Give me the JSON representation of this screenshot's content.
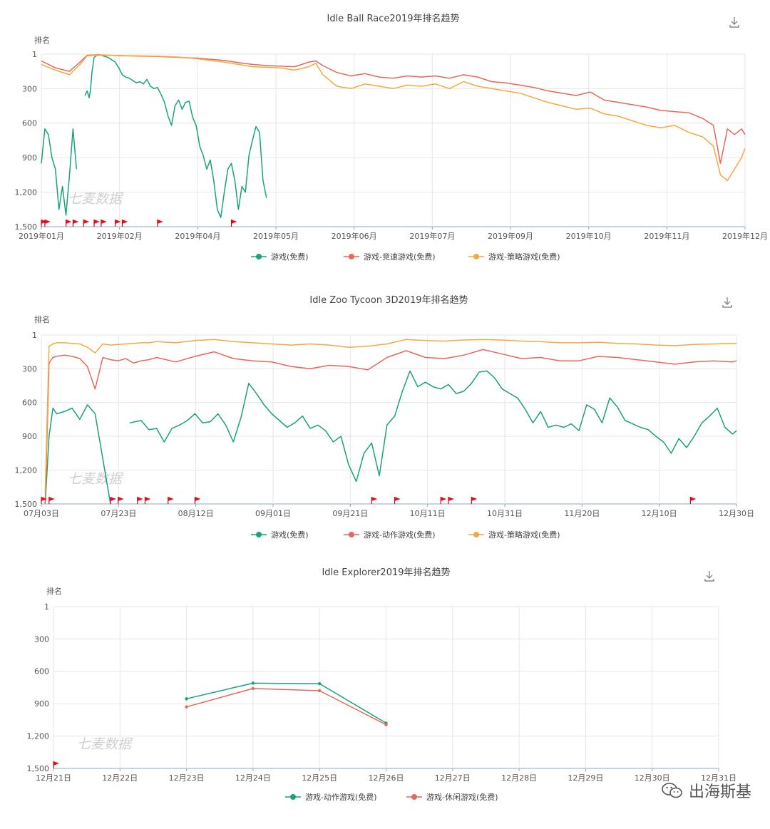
{
  "chart_data": [
    {
      "type": "line",
      "title": "Idle Ball Race2019年排名趋势",
      "ylabel": "排名",
      "y_ticks": [
        "1",
        "300",
        "600",
        "900",
        "1,200",
        "1,500"
      ],
      "ylim": [
        1,
        1500
      ],
      "y_inverted": true,
      "x_ticks": [
        "2019年01月",
        "2019年02月",
        "2019年04月",
        "2019年05月",
        "2019年06月",
        "2019年07月",
        "2019年09月",
        "2019年10月",
        "2019年11月",
        "2019年12月"
      ],
      "xlim": [
        0,
        1000
      ],
      "watermark": "七麦数据",
      "download_icon": "download-icon",
      "series": [
        {
          "name": "游戏(免费)",
          "color": "#1aa17d",
          "x": [
            0,
            5,
            10,
            15,
            20,
            25,
            30,
            35,
            40,
            45,
            50,
            55,
            60,
            62,
            65,
            68,
            70,
            72,
            75,
            80,
            85,
            90,
            95,
            100,
            105,
            110,
            115,
            120,
            125,
            130,
            135,
            140,
            145,
            150,
            155,
            160,
            165,
            170,
            175,
            180,
            185,
            190,
            195,
            200,
            205,
            210,
            215,
            220,
            225,
            230,
            235,
            240,
            245,
            250,
            255,
            260,
            265,
            270,
            275,
            280,
            285,
            290,
            295,
            300,
            305,
            310,
            315,
            320,
            325,
            330,
            335,
            340,
            345,
            350,
            355,
            360,
            365,
            370,
            375,
            380,
            385,
            390,
            395,
            400,
            405,
            410
          ],
          "values": [
            950,
            650,
            700,
            900,
            1000,
            1350,
            1150,
            1400,
            1050,
            650,
            1000,
            null,
            null,
            360,
            320,
            380,
            300,
            150,
            30,
            5,
            10,
            20,
            30,
            50,
            70,
            120,
            180,
            200,
            210,
            230,
            250,
            240,
            260,
            220,
            280,
            300,
            290,
            350,
            420,
            540,
            620,
            450,
            400,
            480,
            420,
            410,
            550,
            620,
            800,
            880,
            1000,
            920,
            1100,
            1350,
            1420,
            1200,
            1000,
            950,
            1100,
            1350,
            1150,
            1200,
            880,
            750,
            630,
            680,
            1100,
            1250,
            null,
            null,
            null,
            null,
            null,
            null,
            null,
            null,
            null,
            null,
            null,
            null,
            null,
            null,
            null,
            null,
            null,
            null
          ]
        },
        {
          "name": "游戏-竞速游戏(免费)",
          "color": "#e8675c",
          "x": [
            0,
            20,
            40,
            55,
            65,
            80,
            100,
            120,
            140,
            160,
            180,
            200,
            220,
            240,
            260,
            280,
            300,
            320,
            340,
            360,
            380,
            390,
            400,
            420,
            440,
            460,
            480,
            500,
            520,
            540,
            560,
            580,
            600,
            620,
            640,
            660,
            680,
            700,
            720,
            740,
            760,
            780,
            800,
            820,
            840,
            860,
            880,
            900,
            920,
            940,
            955,
            965,
            975,
            985,
            995,
            1000
          ],
          "values": [
            60,
            120,
            150,
            70,
            10,
            8,
            12,
            15,
            18,
            20,
            25,
            30,
            35,
            45,
            55,
            75,
            90,
            100,
            105,
            110,
            70,
            60,
            100,
            160,
            190,
            170,
            200,
            210,
            190,
            200,
            190,
            210,
            180,
            200,
            240,
            250,
            270,
            290,
            320,
            340,
            360,
            330,
            400,
            420,
            440,
            460,
            490,
            500,
            510,
            560,
            620,
            950,
            650,
            700,
            650,
            700
          ]
        },
        {
          "name": "游戏-策略游戏(免费)",
          "color": "#f4a940",
          "x": [
            0,
            20,
            40,
            55,
            65,
            80,
            100,
            120,
            140,
            160,
            180,
            200,
            220,
            240,
            260,
            280,
            300,
            320,
            340,
            360,
            380,
            390,
            400,
            420,
            440,
            460,
            480,
            500,
            520,
            540,
            560,
            580,
            600,
            620,
            640,
            660,
            680,
            700,
            720,
            740,
            760,
            780,
            800,
            820,
            840,
            860,
            880,
            900,
            920,
            940,
            955,
            965,
            975,
            985,
            995,
            1000
          ],
          "values": [
            90,
            140,
            180,
            90,
            15,
            10,
            12,
            14,
            16,
            18,
            22,
            28,
            40,
            55,
            70,
            90,
            110,
            115,
            120,
            140,
            110,
            80,
            180,
            280,
            300,
            260,
            280,
            300,
            270,
            280,
            260,
            300,
            240,
            280,
            300,
            320,
            340,
            380,
            420,
            450,
            480,
            470,
            520,
            540,
            580,
            620,
            640,
            620,
            680,
            720,
            800,
            1050,
            1100,
            1000,
            900,
            820
          ]
        }
      ],
      "event_markers": [
        0,
        5,
        35,
        45,
        60,
        75,
        85,
        105,
        115,
        165,
        270
      ]
    },
    {
      "type": "line",
      "title": "Idle Zoo Tycoon 3D2019年排名趋势",
      "ylabel": "排名",
      "y_ticks": [
        "1",
        "300",
        "600",
        "900",
        "1,200",
        "1,500"
      ],
      "ylim": [
        1,
        1500
      ],
      "y_inverted": true,
      "x_ticks": [
        "07月03日",
        "07月23日",
        "08月12日",
        "09月01日",
        "09月21日",
        "10月11日",
        "10月31日",
        "11月20日",
        "12月10日",
        "12月30日"
      ],
      "xlim": [
        0,
        181
      ],
      "watermark": "七麦数据",
      "download_icon": "download-icon",
      "series": [
        {
          "name": "游戏(免费)",
          "color": "#1aa17d",
          "x": [
            1,
            2,
            3,
            4,
            6,
            8,
            10,
            12,
            14,
            16,
            18,
            20,
            21,
            22,
            23,
            26,
            28,
            30,
            32,
            34,
            36,
            38,
            40,
            42,
            44,
            46,
            48,
            50,
            52,
            54,
            56,
            58,
            60,
            62,
            64,
            66,
            68,
            70,
            72,
            74,
            76,
            78,
            80,
            82,
            84,
            86,
            88,
            90,
            92,
            94,
            96,
            98,
            100,
            102,
            104,
            106,
            108,
            110,
            112,
            114,
            116,
            118,
            120,
            122,
            124,
            126,
            128,
            130,
            132,
            134,
            136,
            138,
            140,
            142,
            144,
            146,
            148,
            150,
            152,
            154,
            156,
            158,
            160,
            162,
            164,
            166,
            168,
            170,
            172,
            174,
            176,
            178,
            180,
            181
          ],
          "values": [
            1500,
            900,
            650,
            700,
            680,
            650,
            750,
            620,
            700,
            1100,
            1500,
            null,
            null,
            null,
            780,
            760,
            840,
            830,
            950,
            830,
            800,
            760,
            700,
            780,
            770,
            700,
            800,
            950,
            730,
            430,
            520,
            620,
            700,
            760,
            820,
            780,
            720,
            830,
            800,
            850,
            950,
            900,
            1150,
            1300,
            1050,
            960,
            1250,
            800,
            720,
            500,
            320,
            460,
            420,
            460,
            480,
            440,
            520,
            500,
            430,
            330,
            320,
            380,
            480,
            520,
            560,
            660,
            780,
            680,
            820,
            800,
            820,
            790,
            850,
            620,
            660,
            780,
            560,
            640,
            760,
            790,
            820,
            840,
            900,
            950,
            1050,
            920,
            1000,
            900,
            780,
            720,
            650,
            820,
            880,
            850
          ]
        },
        {
          "name": "游戏-动作游戏(免费)",
          "color": "#e8675c",
          "x": [
            1,
            2,
            3,
            4,
            6,
            8,
            10,
            12,
            14,
            16,
            18,
            20,
            22,
            24,
            26,
            28,
            30,
            35,
            40,
            45,
            50,
            55,
            60,
            65,
            70,
            75,
            80,
            85,
            90,
            95,
            100,
            105,
            110,
            115,
            120,
            125,
            130,
            135,
            140,
            145,
            150,
            155,
            160,
            165,
            170,
            175,
            180,
            181
          ],
          "values": [
            1500,
            250,
            200,
            190,
            180,
            190,
            210,
            280,
            480,
            200,
            220,
            230,
            210,
            250,
            230,
            220,
            200,
            240,
            190,
            150,
            210,
            230,
            240,
            280,
            300,
            270,
            280,
            310,
            200,
            140,
            200,
            210,
            180,
            130,
            170,
            210,
            200,
            230,
            230,
            190,
            200,
            220,
            240,
            260,
            240,
            230,
            240,
            230
          ]
        },
        {
          "name": "游戏-策略游戏(免费)",
          "color": "#f4a940",
          "x": [
            1,
            2,
            3,
            4,
            6,
            8,
            10,
            12,
            14,
            16,
            18,
            20,
            22,
            24,
            26,
            28,
            30,
            35,
            40,
            45,
            50,
            55,
            60,
            65,
            70,
            75,
            80,
            85,
            90,
            95,
            100,
            105,
            110,
            115,
            120,
            125,
            130,
            135,
            140,
            145,
            150,
            155,
            160,
            165,
            170,
            175,
            180,
            181
          ],
          "values": [
            1400,
            100,
            80,
            70,
            70,
            75,
            80,
            110,
            160,
            80,
            90,
            85,
            80,
            75,
            70,
            70,
            60,
            70,
            50,
            40,
            60,
            70,
            80,
            90,
            80,
            90,
            110,
            100,
            80,
            40,
            50,
            55,
            45,
            40,
            45,
            55,
            60,
            70,
            70,
            65,
            75,
            80,
            90,
            95,
            85,
            80,
            75,
            75
          ]
        }
      ],
      "event_markers": [
        0,
        2,
        18,
        20,
        25,
        27,
        33,
        40,
        86,
        92,
        104,
        106,
        112,
        169
      ]
    },
    {
      "type": "line",
      "title": "Idle Explorer2019年排名趋势",
      "ylabel": "排名",
      "y_ticks": [
        "1",
        "300",
        "600",
        "900",
        "1,200",
        "1,500"
      ],
      "ylim": [
        1,
        1500
      ],
      "y_inverted": true,
      "x_ticks": [
        "12月21日",
        "12月22日",
        "12月23日",
        "12月24日",
        "12月25日",
        "12月26日",
        "12月27日",
        "12月28日",
        "12月29日",
        "12月30日",
        "12月31日"
      ],
      "xlim": [
        0,
        10
      ],
      "watermark": "七麦数据",
      "download_icon": "download-icon",
      "series": [
        {
          "name": "游戏-动作游戏(免费)",
          "color": "#1aa17d",
          "x": [
            2,
            3,
            4,
            5
          ],
          "values": [
            855,
            710,
            715,
            1080
          ]
        },
        {
          "name": "游戏-休闲游戏(免费)",
          "color": "#e8675c",
          "x": [
            2,
            3,
            4,
            5
          ],
          "values": [
            930,
            760,
            780,
            1095
          ]
        }
      ],
      "event_markers": [
        0
      ]
    }
  ],
  "watermark_brand": "出海斯基"
}
